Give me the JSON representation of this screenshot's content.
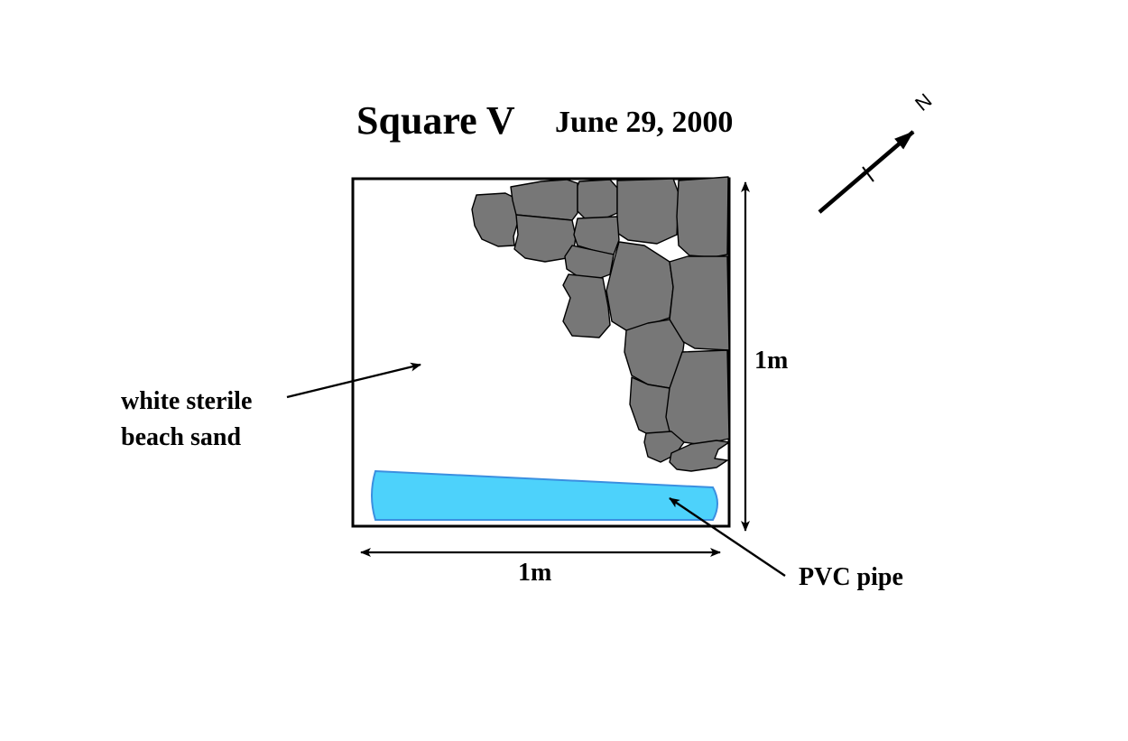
{
  "title": "Square V",
  "date": "June 29, 2000",
  "labels": {
    "sand_line1": "white sterile",
    "sand_line2": "beach sand",
    "pipe": "PVC pipe",
    "width_dim": "1m",
    "height_dim": "1m",
    "north": "N"
  },
  "colors": {
    "rock_fill": "#777777",
    "pipe_fill": "#4dd2fb",
    "pipe_stroke": "#3b8fe0",
    "outline": "#000000",
    "background": "#ffffff"
  },
  "icons": {
    "north_arrow": "north-arrow-icon"
  }
}
